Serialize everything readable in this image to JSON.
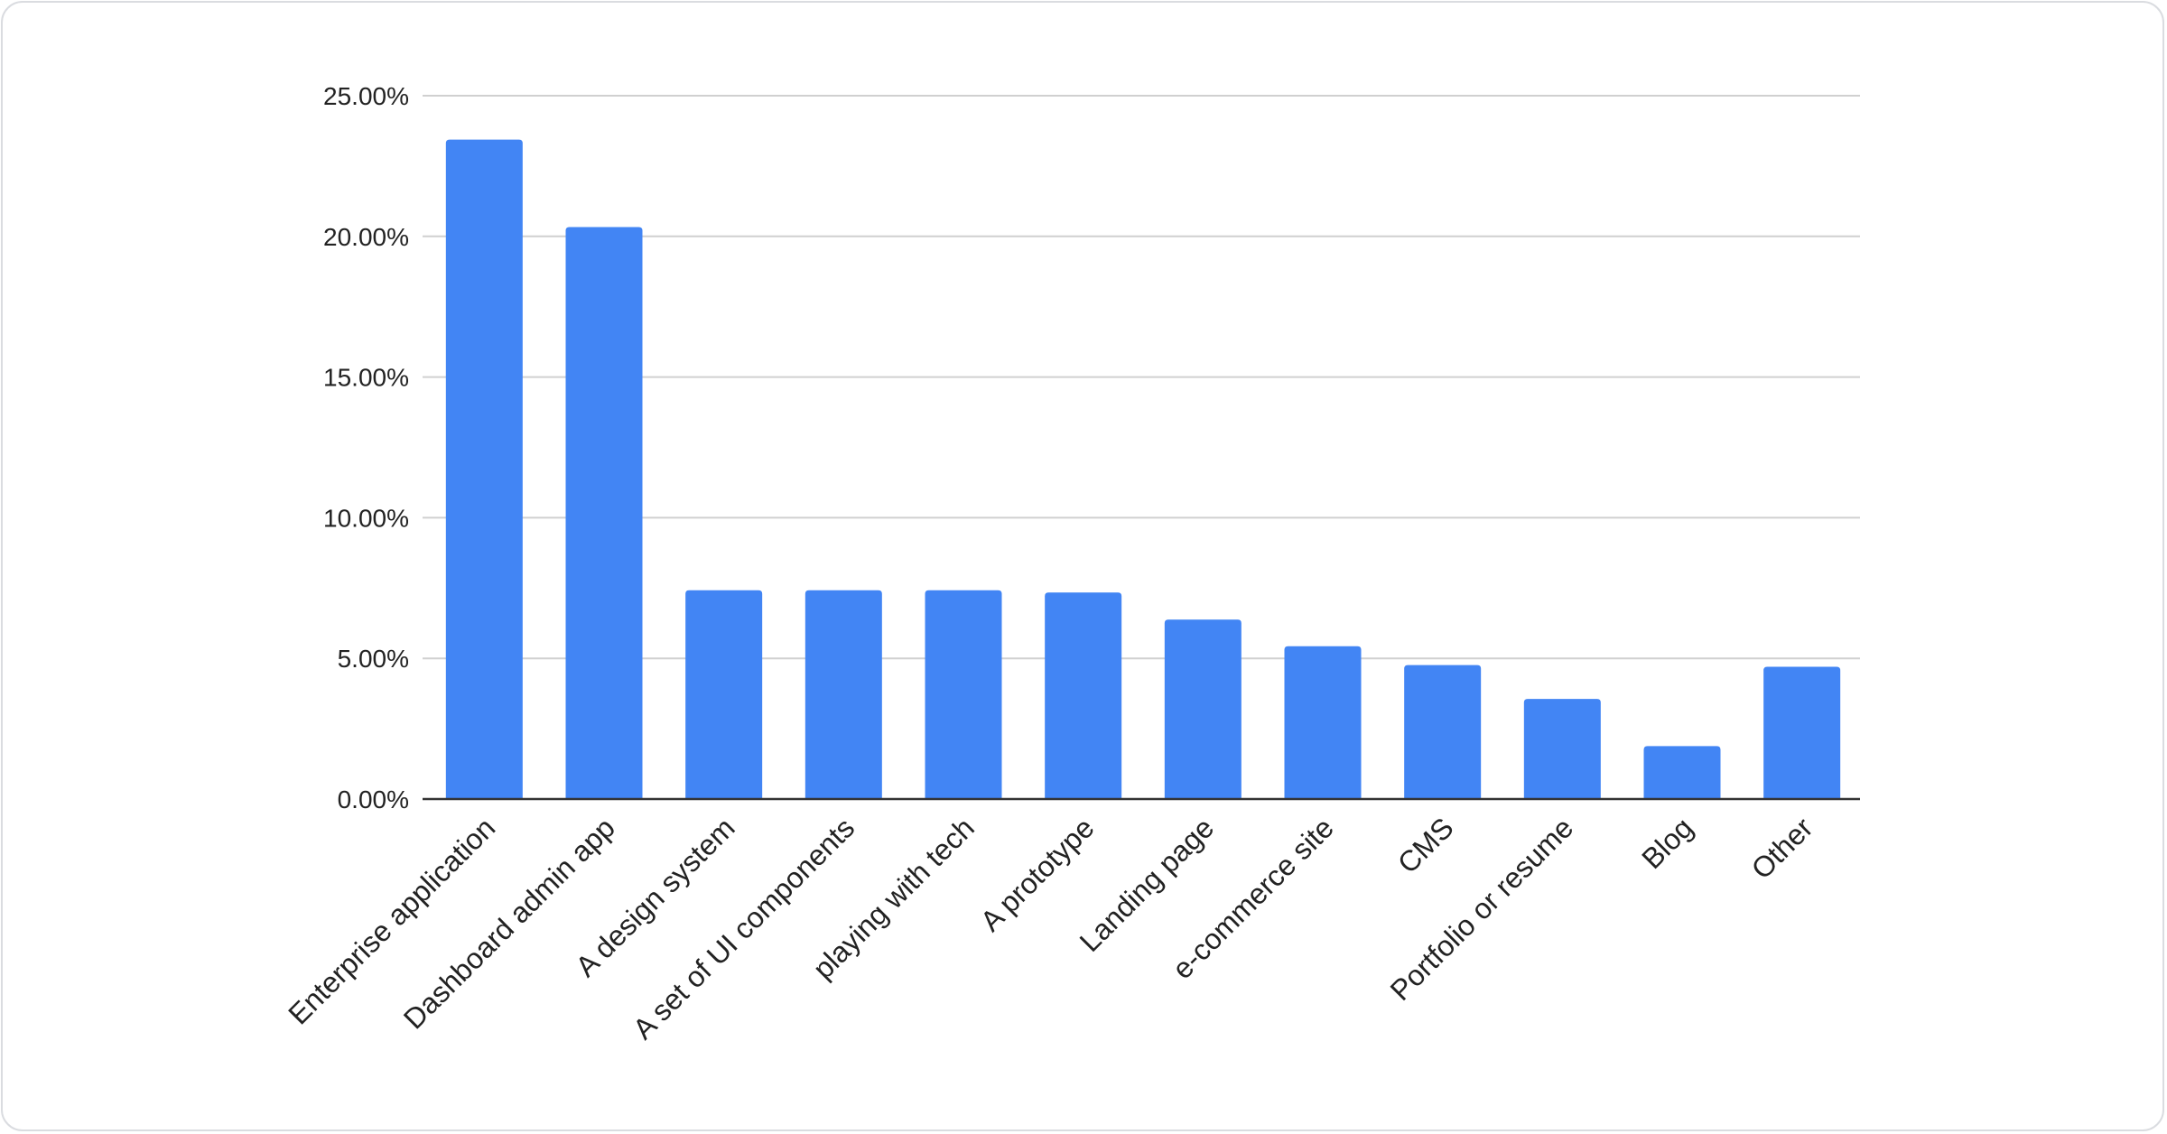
{
  "chart_data": {
    "type": "bar",
    "title": "",
    "xlabel": "",
    "ylabel": "",
    "categories": [
      "Enterprise application",
      "Dashboard admin app",
      "A design system",
      "A set of UI components",
      "playing with tech",
      "A prototype",
      "Landing page",
      "e-commerce site",
      "CMS",
      "Portfolio or resume",
      "Blog",
      "Other"
    ],
    "values": [
      23.44,
      20.33,
      7.42,
      7.42,
      7.42,
      7.34,
      6.38,
      5.43,
      4.76,
      3.56,
      1.88,
      4.7
    ],
    "value_unit": "%",
    "ylim": [
      0,
      25
    ],
    "yticks": [
      "0.00%",
      "5.00%",
      "10.00%",
      "15.00%",
      "20.00%",
      "25.00%"
    ],
    "grid": true,
    "legend": "none",
    "bar_color": "#4285f4"
  }
}
